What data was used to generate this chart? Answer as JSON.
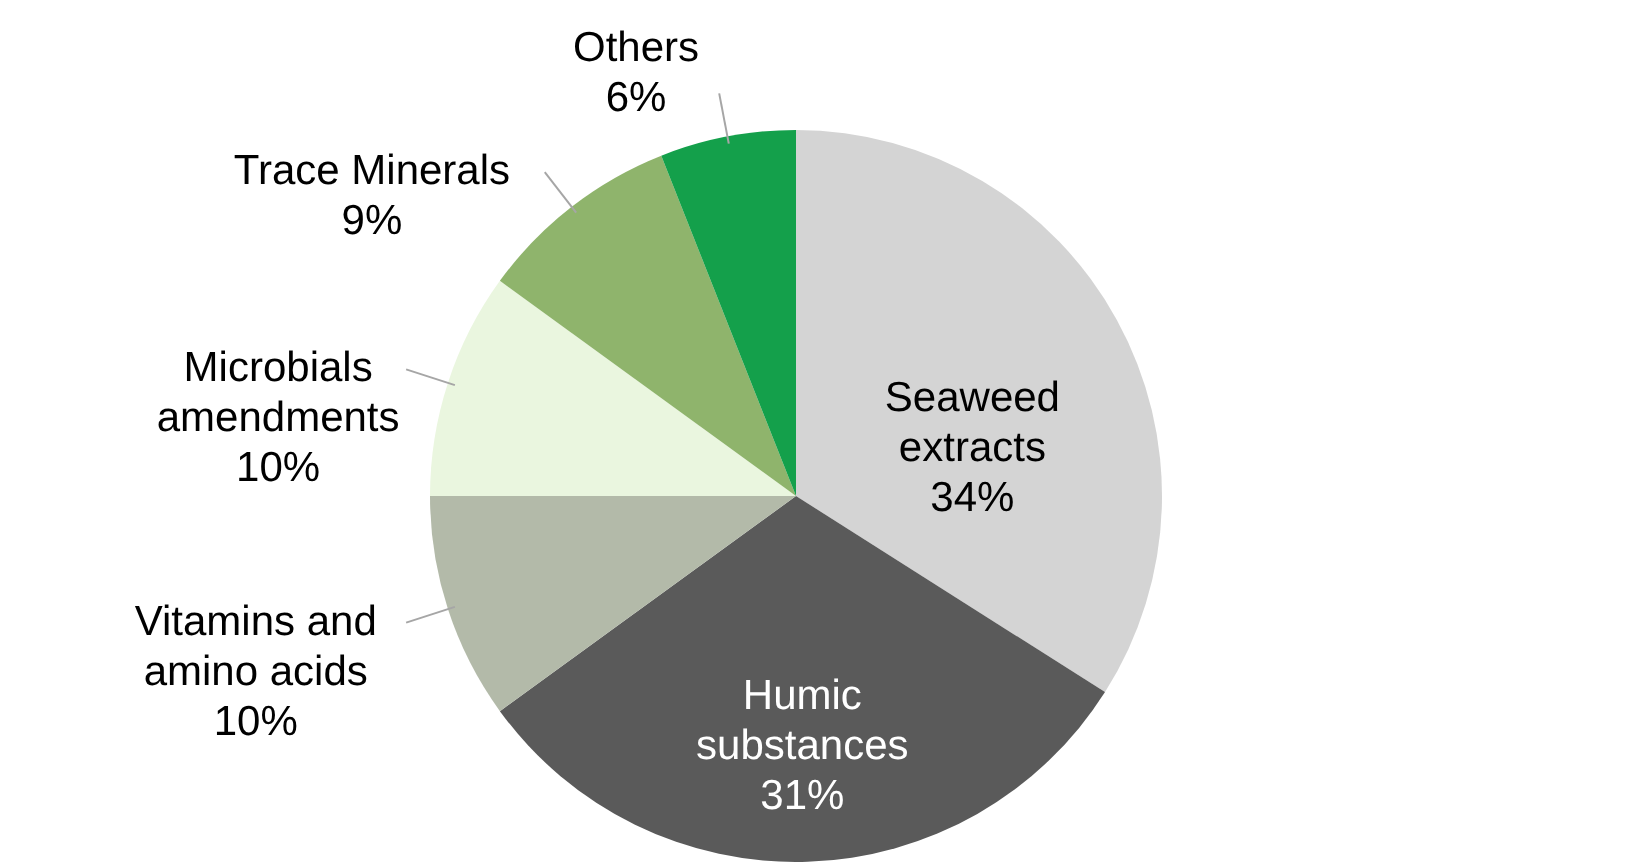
{
  "chart_data": {
    "type": "pie",
    "categories": [
      "Seaweed extracts",
      "Humic substances",
      "Vitamins and amino acids",
      "Microbials amendments",
      "Trace Minerals",
      "Others"
    ],
    "values": [
      34,
      31,
      10,
      10,
      9,
      6
    ],
    "value_labels": [
      "34%",
      "31%",
      "10%",
      "10%",
      "9%",
      "6%"
    ],
    "colors": [
      "#d4d4d4",
      "#5a5a5a",
      "#b3baa9",
      "#eaf6df",
      "#8fb46c",
      "#14a04b"
    ]
  }
}
